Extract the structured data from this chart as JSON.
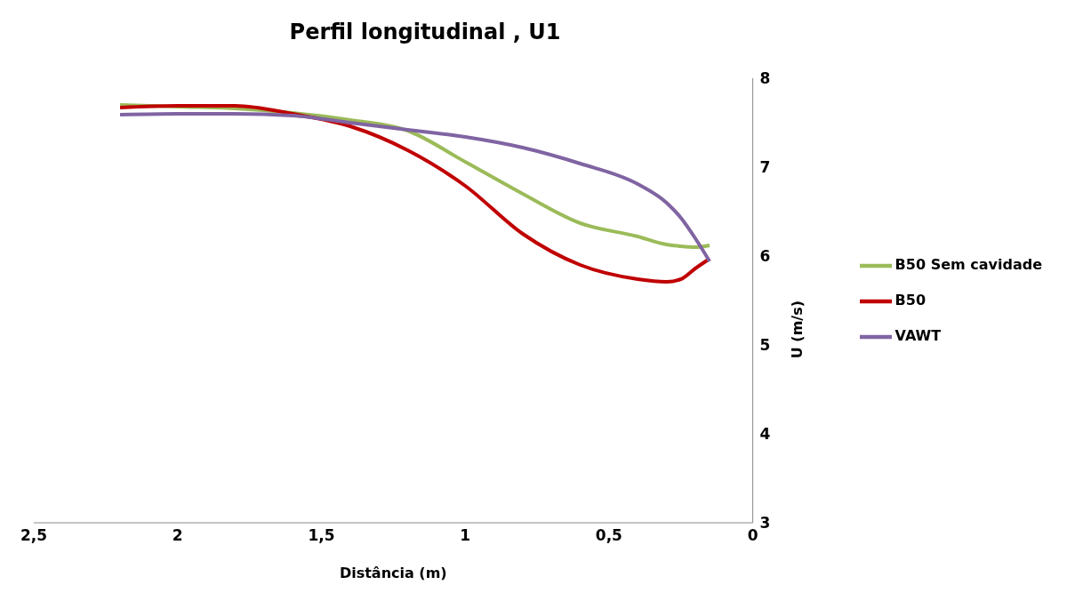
{
  "chart_data": {
    "type": "line",
    "title": "Perfil longitudinal , U1",
    "xlabel": "Distância (m)",
    "ylabel": "U (m/s)",
    "x": [
      2.2,
      2.0,
      1.8,
      1.6,
      1.4,
      1.2,
      1.0,
      0.8,
      0.6,
      0.4,
      0.3,
      0.25,
      0.2,
      0.15
    ],
    "xlim": [
      2.5,
      0
    ],
    "xticks": [
      {
        "value": 2.5,
        "label": "2,5"
      },
      2,
      {
        "value": 1.5,
        "label": "1,5"
      },
      1,
      {
        "value": 0.5,
        "label": "0,5"
      },
      0
    ],
    "ylim": [
      3,
      8
    ],
    "yticks": [
      3,
      4,
      5,
      6,
      7,
      8
    ],
    "grid": false,
    "legend": "right",
    "series": [
      {
        "name": "B50 Sem cavidade",
        "color": "#9bbb59",
        "values": [
          7.7,
          7.68,
          7.66,
          7.61,
          7.53,
          7.41,
          7.06,
          6.7,
          6.37,
          6.22,
          6.13,
          6.11,
          6.1,
          6.12
        ]
      },
      {
        "name": "B50",
        "color": "#c00000",
        "values": [
          7.67,
          7.69,
          7.69,
          7.6,
          7.46,
          7.19,
          6.79,
          6.25,
          5.9,
          5.74,
          5.71,
          5.74,
          5.86,
          5.97
        ]
      },
      {
        "name": "VAWT",
        "color": "#8064a2",
        "values": [
          7.59,
          7.6,
          7.6,
          7.58,
          7.5,
          7.42,
          7.34,
          7.22,
          7.04,
          6.81,
          6.6,
          6.43,
          6.2,
          5.94
        ]
      }
    ]
  }
}
